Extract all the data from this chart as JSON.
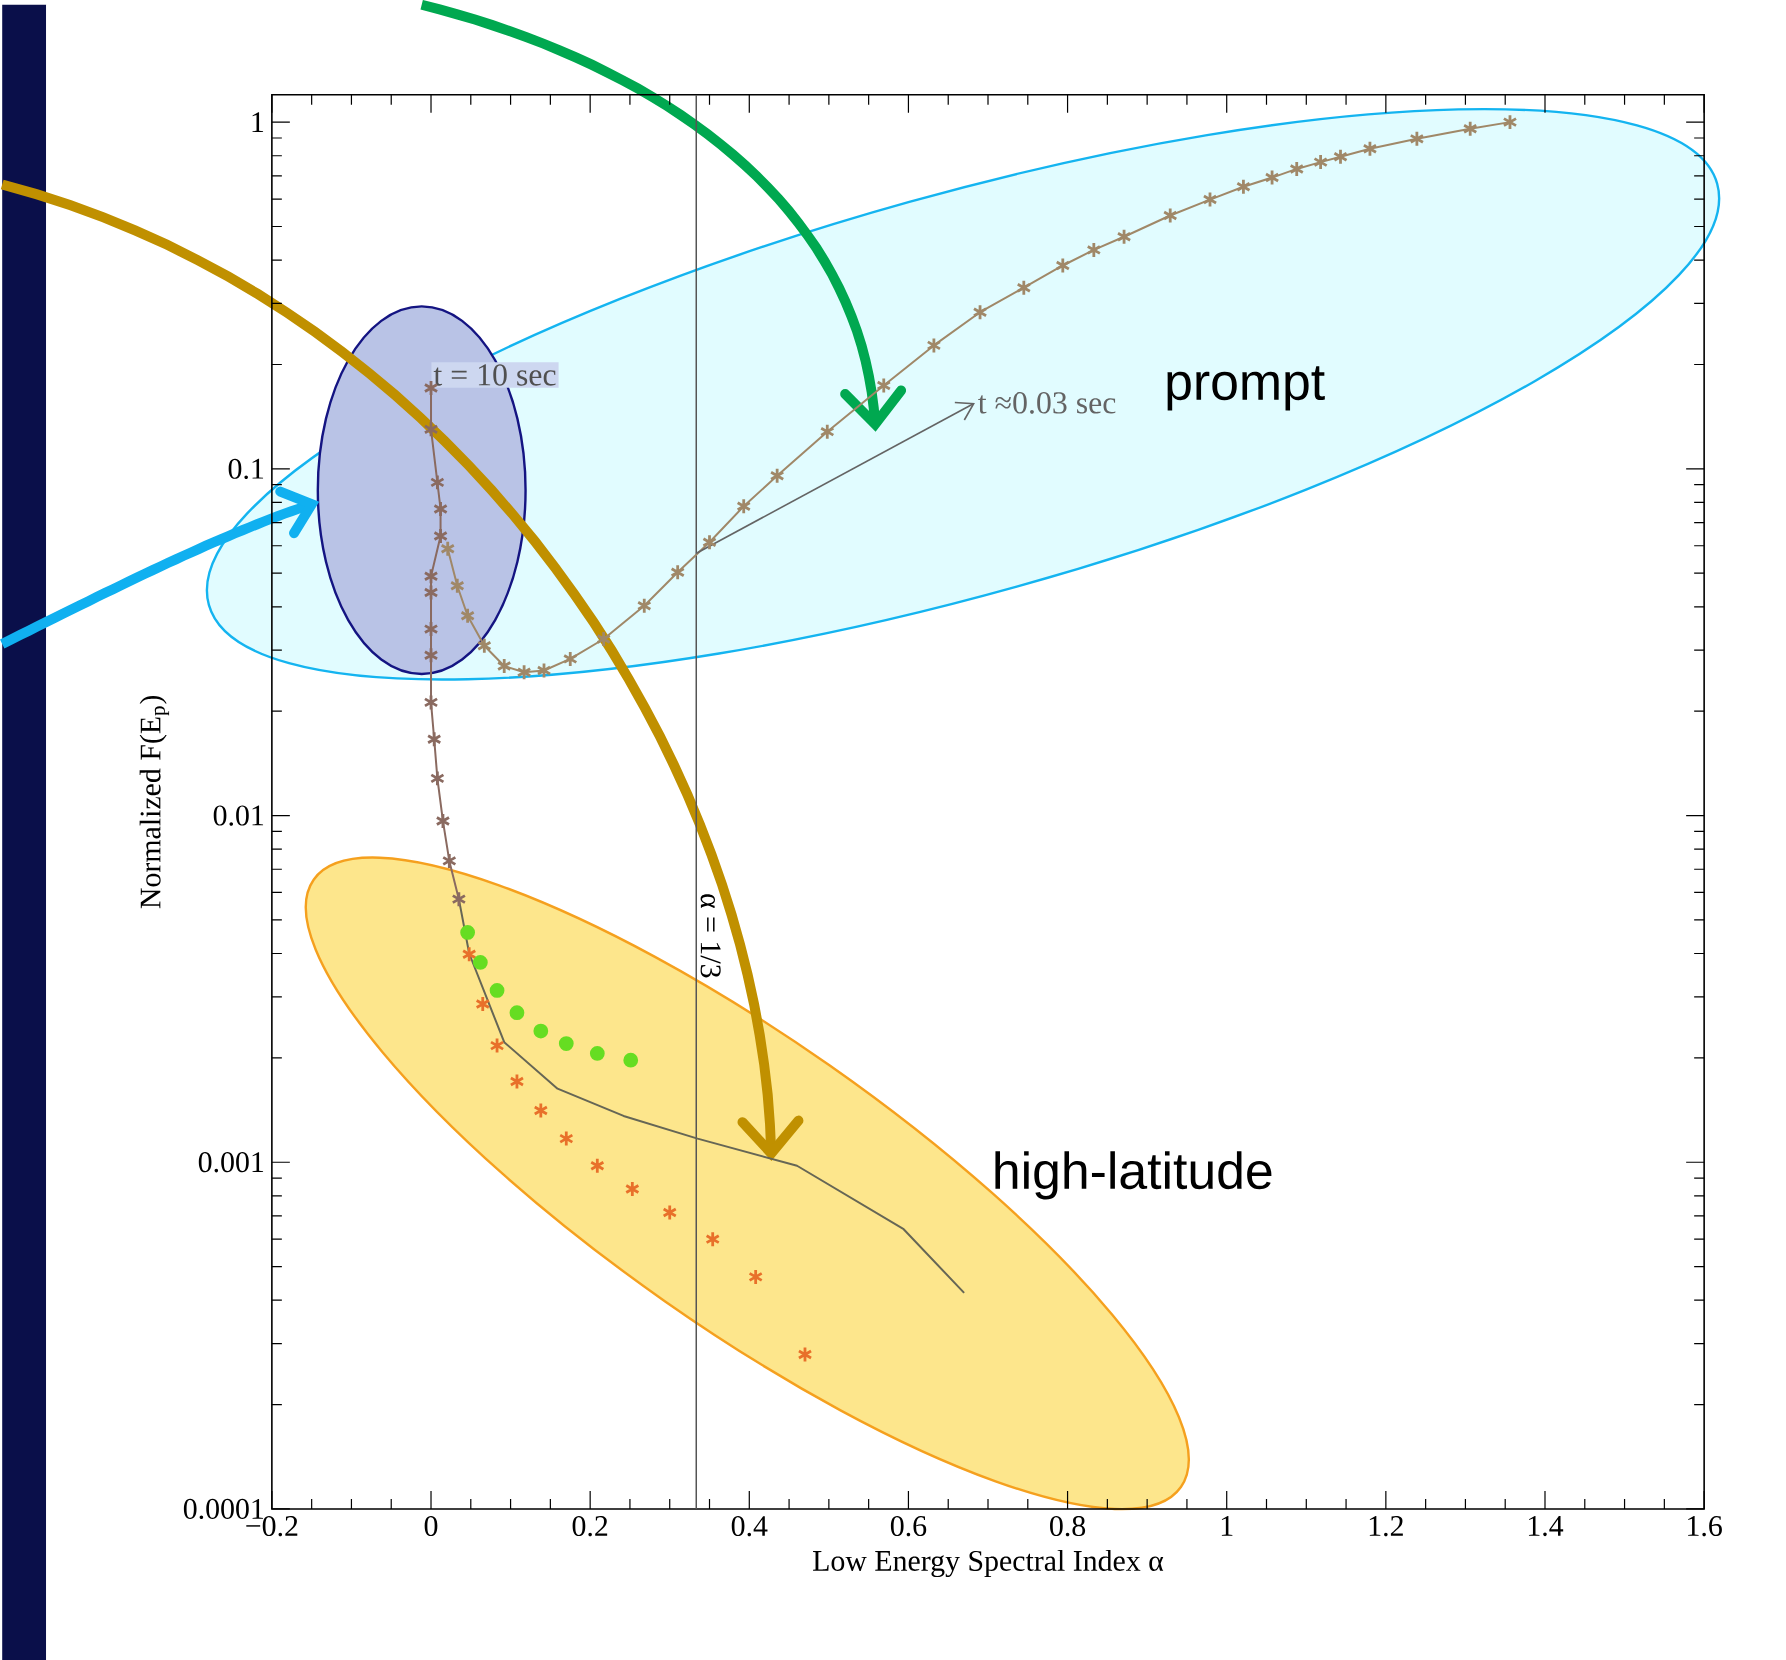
{
  "chart_data": {
    "type": "line",
    "xlabel": "Low Energy Spectral Index α",
    "ylabel": "Normalized F(E$_{p}$)",
    "log": "y",
    "xlim": [
      -0.2,
      1.6
    ],
    "ylim": [
      0.0001,
      1.2
    ],
    "xticks": [
      {
        "value": -0.2,
        "label": "−0.2"
      },
      0,
      0.2,
      0.4,
      0.6,
      0.8,
      1,
      1.2,
      1.4,
      1.6
    ],
    "yticks": [
      0.0001,
      0.001,
      0.01,
      0.1,
      1
    ],
    "ref_lines": [
      {
        "axis": "x",
        "value": 0.3333,
        "color": "#555555"
      }
    ],
    "annotations": [
      {
        "text": "t = 10 sec",
        "x": 0,
        "y": 0.171
      },
      {
        "text": "t ≈0.03 sec",
        "x": 0.333,
        "y": 0.057
      },
      "prompt",
      "high-latitude",
      {
        "text": "α = 1/3",
        "x": 0.3333,
        "y": 0.0045
      }
    ],
    "series": [
      {
        "marker": "cross",
        "color": "#a08868",
        "x": [
          1.356,
          1.306,
          1.239,
          1.18,
          1.143,
          1.118,
          1.088,
          1.057,
          1.021,
          0.979,
          0.929,
          0.871,
          0.833,
          0.794,
          0.745,
          0.69,
          0.632,
          0.569,
          0.498,
          0.435,
          0.393,
          0.35,
          0.31,
          0.268,
          0.217,
          0.175,
          0.142,
          0.117,
          0.092,
          0.067,
          0.046,
          0.033,
          0.021
        ],
        "values": [
          1.0,
          0.957,
          0.895,
          0.838,
          0.795,
          0.767,
          0.733,
          0.692,
          0.651,
          0.598,
          0.538,
          0.467,
          0.428,
          0.386,
          0.333,
          0.283,
          0.227,
          0.174,
          0.128,
          0.0955,
          0.078,
          0.0614,
          0.0503,
          0.0403,
          0.0323,
          0.0283,
          0.0262,
          0.0259,
          0.027,
          0.0309,
          0.0377,
          0.046,
          0.0588
        ]
      },
      {
        "marker": "cross",
        "color": "#8a6a60",
        "x": [
          0.0,
          0.0,
          0.008,
          0.012,
          0.012,
          0.0,
          0.0,
          0.0,
          0.0,
          0.0,
          0.004,
          0.008,
          0.015,
          0.023,
          0.035
        ],
        "values": [
          0.171,
          0.13,
          0.0914,
          0.0766,
          0.064,
          0.049,
          0.044,
          0.0345,
          0.029,
          0.0212,
          0.0166,
          0.0128,
          0.00964,
          0.0074,
          0.00574
        ]
      },
      {
        "marker": "none",
        "color": "#666655",
        "x": [
          0.035,
          0.048,
          0.092,
          0.159,
          0.242,
          0.335,
          0.46,
          0.594,
          0.67
        ],
        "values": [
          0.00574,
          0.004,
          0.00222,
          0.00163,
          0.00136,
          0.00117,
          0.000977,
          0.000641,
          0.00042
        ]
      },
      {
        "type": "scatter",
        "marker": "cross",
        "color": "#e8702a",
        "x": [
          0.048,
          0.065,
          0.083,
          0.108,
          0.138,
          0.17,
          0.209,
          0.253,
          0.3,
          0.354,
          0.408,
          0.47
        ],
        "values": [
          0.00398,
          0.00286,
          0.00217,
          0.00171,
          0.00141,
          0.00117,
          0.000977,
          0.000837,
          0.000716,
          0.0006,
          0.000467,
          0.000279
        ]
      },
      {
        "type": "scatter",
        "marker": "circle",
        "color": "#66dd22",
        "x": [
          0.046,
          0.062,
          0.083,
          0.108,
          0.138,
          0.17,
          0.209,
          0.251
        ],
        "values": [
          0.0046,
          0.00377,
          0.00313,
          0.0027,
          0.00239,
          0.0022,
          0.00206,
          0.00197
        ]
      }
    ]
  }
}
